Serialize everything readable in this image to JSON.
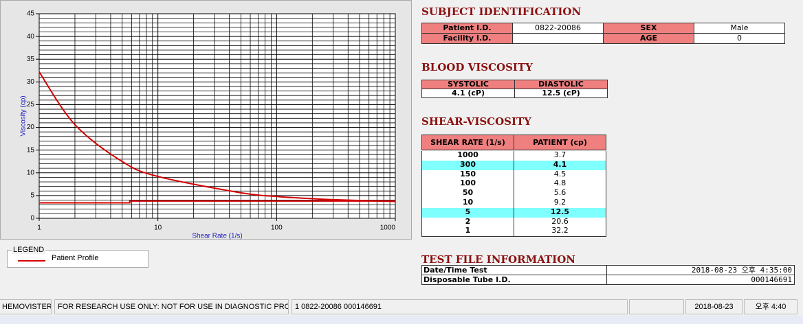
{
  "chart_data": {
    "type": "line",
    "xscale": "log",
    "x_label": "Shear Rate (1/s)",
    "y_label": "Viscosity (cp)",
    "xlim": [
      1,
      1000
    ],
    "ylim": [
      0,
      45
    ],
    "xticks": [
      1,
      10,
      100,
      1000
    ],
    "yticks": [
      0,
      5,
      10,
      15,
      20,
      25,
      30,
      35,
      40,
      45
    ],
    "xminorticks": [
      2,
      3,
      4,
      5,
      6,
      7,
      8,
      9,
      20,
      30,
      40,
      50,
      60,
      70,
      80,
      90,
      200,
      300,
      400,
      500,
      600,
      700,
      800,
      900
    ],
    "yminorticks": [
      1,
      2,
      3,
      4,
      6,
      7,
      8,
      9,
      11,
      12,
      13,
      14,
      16,
      17,
      18,
      19,
      21,
      22,
      23,
      24,
      26,
      27,
      28,
      29,
      31,
      32,
      33,
      34,
      36,
      37,
      38,
      39,
      41,
      42,
      43,
      44
    ],
    "grid": true,
    "series": [
      {
        "name": "Patient Profile",
        "color": "#d40000",
        "x": [
          1,
          2,
          5,
          10,
          50,
          100,
          150,
          300,
          1000
        ],
        "values": [
          32.2,
          20.6,
          12.5,
          9.2,
          5.6,
          4.8,
          4.5,
          4.1,
          3.7
        ]
      },
      {
        "color": "#d40000",
        "x": [
          1,
          5.8,
          5.8,
          1000
        ],
        "values": [
          3.4,
          3.4,
          3.8,
          3.8
        ]
      }
    ]
  },
  "legend": {
    "title": "LEGEND"
  },
  "subject": {
    "title": "SUBJECT IDENTIFICATION",
    "rows": [
      [
        "Patient I.D.",
        "0822-20086",
        "SEX",
        "Male"
      ],
      [
        "Facility I.D.",
        null,
        "AGE",
        "0"
      ]
    ]
  },
  "blood": {
    "title": "BLOOD VISCOSITY",
    "header": [
      "SYSTOLIC",
      "DIASTOLIC"
    ],
    "values": [
      "4.1 (cP)",
      "12.5 (cP)"
    ]
  },
  "shear": {
    "title": "SHEAR-VISCOSITY",
    "header": [
      "SHEAR RATE (1/s)",
      "PATIENT (cp)"
    ],
    "rows": [
      {
        "cells": [
          "1000",
          "3.7"
        ],
        "highlight": false
      },
      {
        "cells": [
          "300",
          "4.1"
        ],
        "highlight": true
      },
      {
        "cells": [
          "150",
          "4.5"
        ],
        "highlight": false
      },
      {
        "cells": [
          "100",
          "4.8"
        ],
        "highlight": false
      },
      {
        "cells": [
          "50",
          "5.6"
        ],
        "highlight": false
      },
      {
        "cells": [
          "10",
          "9.2"
        ],
        "highlight": false
      },
      {
        "cells": [
          "5",
          "12.5"
        ],
        "highlight": true
      },
      {
        "cells": [
          "2",
          "20.6"
        ],
        "highlight": false
      },
      {
        "cells": [
          "1",
          "32.2"
        ],
        "highlight": false
      }
    ]
  },
  "test_file": {
    "title": "TEST FILE INFORMATION",
    "rows": [
      [
        "Date/Time Test",
        "2018-08-23  오후 4:35:00"
      ],
      [
        "Disposable Tube I.D.",
        "000146691"
      ]
    ]
  },
  "status_bar": {
    "cells": [
      "HEMOVISTER",
      "FOR RESEARCH USE ONLY: NOT FOR USE IN DIAGNOSTIC PROCEDURES",
      "1  0822-20086  000146691",
      null,
      "2018-08-23",
      "오후 4:40"
    ]
  }
}
